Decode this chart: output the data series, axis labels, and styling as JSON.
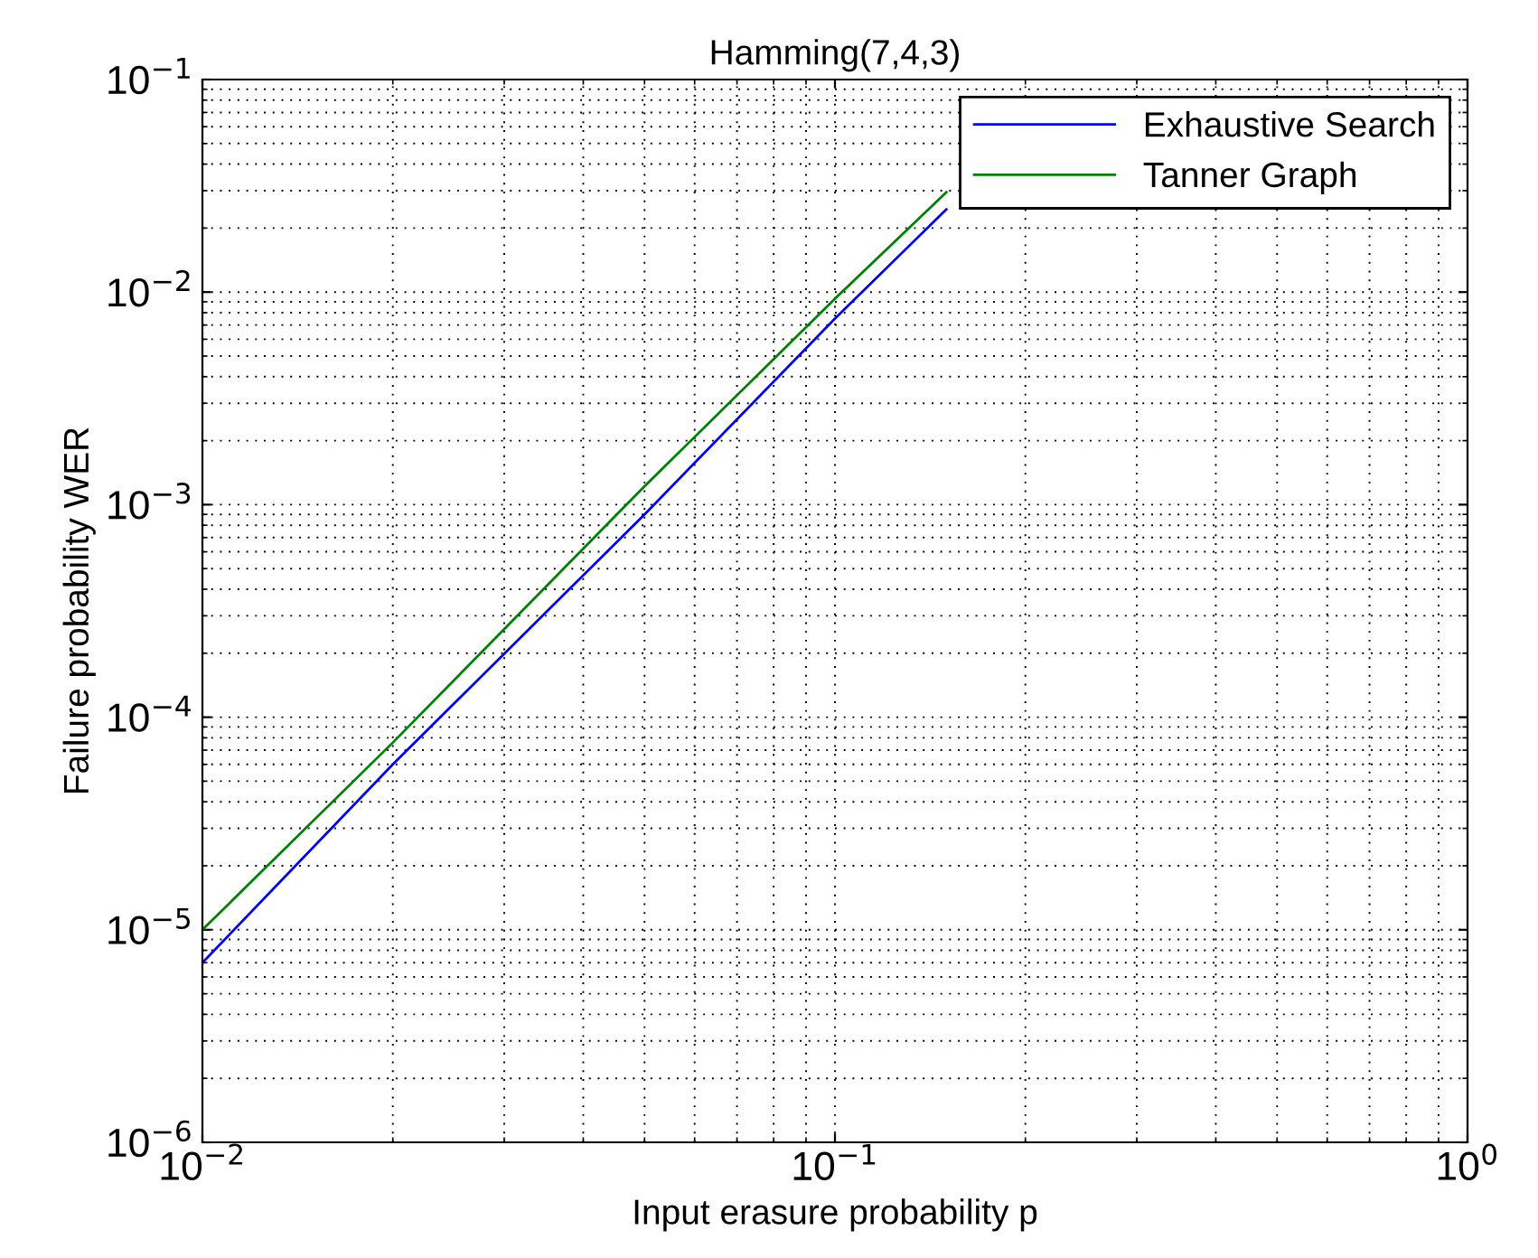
{
  "chart_data": {
    "type": "line",
    "title": "Hamming(7,4,3)",
    "xlabel": "Input erasure probability p",
    "ylabel": "Failure probability WER",
    "log": "xy",
    "xlim": [
      0.01,
      1
    ],
    "ylim": [
      1e-06,
      0.1
    ],
    "xticks": [
      {
        "value": 0.01,
        "label": "10$^{−2}$"
      },
      {
        "value": 0.1,
        "label": "10$^{−1}$"
      },
      {
        "value": 1,
        "label": "10$^{0}$"
      }
    ],
    "yticks": [
      {
        "value": 1e-06,
        "label": "10$^{−6}$"
      },
      {
        "value": 1e-05,
        "label": "10$^{−5}$"
      },
      {
        "value": 0.0001,
        "label": "10$^{−4}$"
      },
      {
        "value": 0.001,
        "label": "10$^{−3}$"
      },
      {
        "value": 0.01,
        "label": "10$^{−2}$"
      },
      {
        "value": 0.1,
        "label": "10$^{−1}$"
      }
    ],
    "x": [
      0.01,
      0.02,
      0.05,
      0.1,
      0.15
    ],
    "series": [
      {
        "name": "Exhaustive Search",
        "color": "#0000ff",
        "values": [
          7e-06,
          6e-05,
          0.0009,
          0.0075,
          0.0245
        ]
      },
      {
        "name": "Tanner Graph",
        "color": "#008000",
        "values": [
          1e-05,
          7.6e-05,
          0.00122,
          0.0093,
          0.0295
        ]
      }
    ],
    "grid": true,
    "legend": "top right",
    "marker": "none",
    "line_style": "solid"
  }
}
